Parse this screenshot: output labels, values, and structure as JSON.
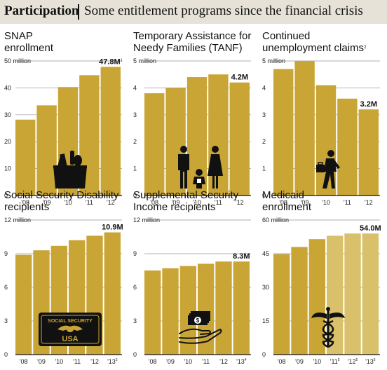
{
  "header": {
    "title": "Participation",
    "subtitle": "Some entitlement programs since the financial crisis"
  },
  "colors": {
    "bar": "#c9a536",
    "bar_light": "#d9c06a",
    "axis": "#111111",
    "grid": "#999999",
    "header_bg": "#e6e2d8"
  },
  "chart_data": [
    {
      "type": "bar",
      "title_lines": [
        "SNAP",
        "enrollment"
      ],
      "title_note": "",
      "categories": [
        "'08",
        "'09",
        "'10",
        "'11",
        "'12"
      ],
      "category_notes": [
        "",
        "",
        "",
        "",
        ""
      ],
      "values": [
        28.2,
        33.5,
        40.3,
        44.7,
        47.8
      ],
      "light": [
        false,
        false,
        false,
        false,
        false
      ],
      "ylim": [
        0,
        50
      ],
      "yticks": [
        "0",
        "10",
        "20",
        "30",
        "40",
        "50 million"
      ],
      "value_label": {
        "text": "47.8M",
        "note": "1"
      },
      "icon": "grocery-bag-icon"
    },
    {
      "type": "bar",
      "title_lines": [
        "Temporary Assistance for",
        "Needy Families (TANF)"
      ],
      "title_note": "",
      "categories": [
        "'08",
        "'09",
        "'10",
        "'11",
        "'12"
      ],
      "category_notes": [
        "",
        "",
        "",
        "",
        ""
      ],
      "values": [
        3.8,
        4.0,
        4.4,
        4.5,
        4.2
      ],
      "light": [
        false,
        false,
        false,
        false,
        false
      ],
      "ylim": [
        0,
        5
      ],
      "yticks": [
        "0",
        "1",
        "2",
        "3",
        "4",
        "5 million"
      ],
      "value_label": {
        "text": "4.2M",
        "note": ""
      },
      "icon": "family-icon"
    },
    {
      "type": "bar",
      "title_lines": [
        "Continued",
        "unemployment claims"
      ],
      "title_note": "2",
      "categories": [
        "'08",
        "'09",
        "'10",
        "'11",
        "'12"
      ],
      "category_notes": [
        "",
        "",
        "",
        "",
        ""
      ],
      "values": [
        4.7,
        5.0,
        4.1,
        3.6,
        3.2
      ],
      "light": [
        false,
        false,
        false,
        false,
        false
      ],
      "ylim": [
        0,
        5
      ],
      "yticks": [
        "0",
        "1",
        "2",
        "3",
        "4",
        "5 million"
      ],
      "value_label": {
        "text": "3.2M",
        "note": ""
      },
      "icon": "walking-man-briefcase-icon"
    },
    {
      "type": "bar",
      "title_lines": [
        "Social Security Disability",
        "recipients"
      ],
      "title_note": "",
      "categories": [
        "'08",
        "'09",
        "'10",
        "'11",
        "'12",
        "'13"
      ],
      "category_notes": [
        "",
        "",
        "",
        "",
        "",
        "3"
      ],
      "values": [
        8.9,
        9.3,
        9.7,
        10.2,
        10.6,
        10.9
      ],
      "light": [
        false,
        false,
        false,
        false,
        false,
        false
      ],
      "ylim": [
        0,
        12
      ],
      "yticks": [
        "0",
        "3",
        "6",
        "9",
        "12 million"
      ],
      "value_label": {
        "text": "10.9M",
        "note": ""
      },
      "icon": "social-security-card-icon",
      "icon_text": [
        "SOCIAL SECURITY",
        "USA"
      ]
    },
    {
      "type": "bar",
      "title_lines": [
        "Supplemental Security",
        "Income recipients"
      ],
      "title_note": "",
      "categories": [
        "'08",
        "'09",
        "'10",
        "'11",
        "'12",
        "'13"
      ],
      "category_notes": [
        "",
        "",
        "",
        "",
        "",
        "4"
      ],
      "values": [
        7.5,
        7.7,
        7.9,
        8.1,
        8.3,
        8.3
      ],
      "light": [
        false,
        false,
        false,
        false,
        false,
        false
      ],
      "ylim": [
        0,
        12
      ],
      "yticks": [
        "0",
        "3",
        "6",
        "9",
        "12 million"
      ],
      "value_label": {
        "text": "8.3M",
        "note": ""
      },
      "icon": "money-hand-icon",
      "icon_text": [
        "$"
      ]
    },
    {
      "type": "bar",
      "title_lines": [
        "Medicaid",
        "enrollment"
      ],
      "title_note": "",
      "categories": [
        "'08",
        "'09",
        "'10",
        "'11",
        "'12",
        "'13"
      ],
      "category_notes": [
        "",
        "",
        "",
        "5",
        "5",
        "5"
      ],
      "values": [
        44.8,
        48.0,
        51.5,
        53.0,
        54.0,
        54.0
      ],
      "light": [
        false,
        false,
        false,
        true,
        true,
        true
      ],
      "ylim": [
        0,
        60
      ],
      "yticks": [
        "0",
        "15",
        "30",
        "45",
        "60 million"
      ],
      "value_label": {
        "text": "54.0M",
        "note": ""
      },
      "icon": "caduceus-icon"
    }
  ]
}
